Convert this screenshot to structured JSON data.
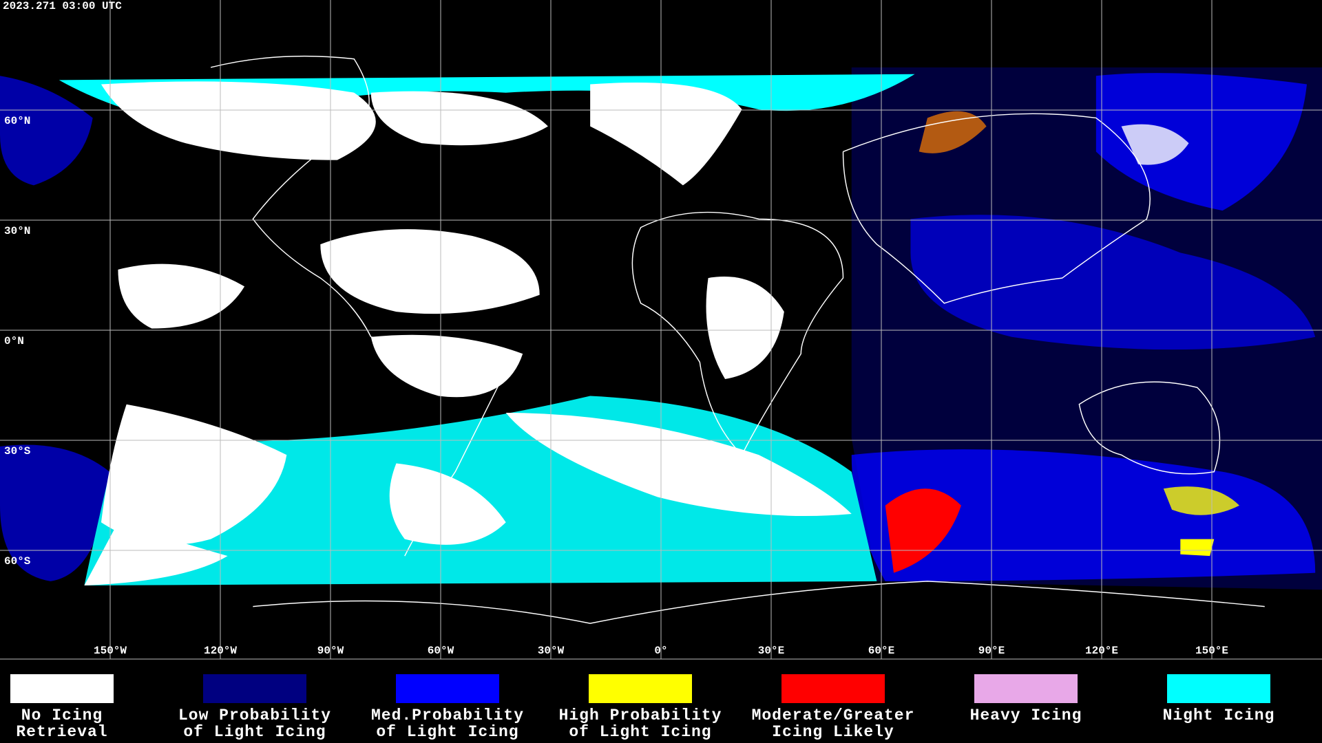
{
  "timestamp": "2023.271 03:00 UTC",
  "latitude_labels": [
    "60°N",
    "30°N",
    "0°N",
    "30°S",
    "60°S"
  ],
  "longitude_labels": [
    "150°W",
    "120°W",
    "90°W",
    "60°W",
    "30°W",
    "0°",
    "30°E",
    "60°E",
    "90°E",
    "120°E",
    "150°E"
  ],
  "legend": [
    {
      "label": [
        "No Icing",
        "Retrieval"
      ],
      "color": "#ffffff"
    },
    {
      "label": [
        "Low Probability",
        "of Light Icing"
      ],
      "color": "#000080"
    },
    {
      "label": [
        "Med.Probability",
        "of Light Icing"
      ],
      "color": "#0000ff"
    },
    {
      "label": [
        "High Probability",
        "of Light Icing"
      ],
      "color": "#ffff00"
    },
    {
      "label": [
        "Moderate/Greater",
        "Icing Likely"
      ],
      "color": "#ff0000"
    },
    {
      "label": [
        "Heavy Icing"
      ],
      "color": "#e8a8e8"
    },
    {
      "label": [
        "Night Icing"
      ],
      "color": "#00ffff"
    }
  ]
}
